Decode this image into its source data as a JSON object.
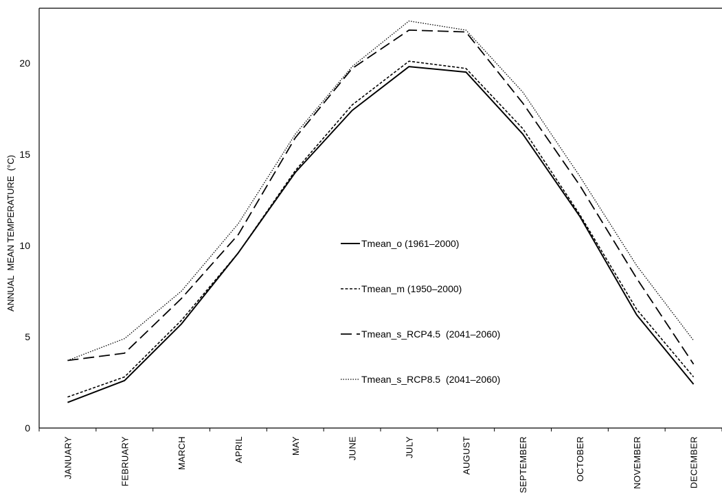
{
  "chart_data": {
    "type": "line",
    "title": "",
    "xlabel": "",
    "ylabel": "ANNUAL  MEAN TEMPERATURE  (°C)",
    "ylim": [
      0,
      23
    ],
    "yticks": [
      0,
      5,
      10,
      15,
      20
    ],
    "grid": false,
    "legend_position": "center",
    "categories": [
      "JANUARY",
      "FEBRUARY",
      "MARCH",
      "APRIL",
      "MAY",
      "JUNE",
      "JULY",
      "AUGUST",
      "SEPTEMBER",
      "OCTOBER",
      "NOVEMBER",
      "DECEMBER"
    ],
    "series": [
      {
        "name": "Tmean_o (1961–2000)",
        "style": "solid",
        "color": "#000000",
        "values": [
          1.4,
          2.6,
          5.7,
          9.6,
          14.0,
          17.4,
          19.8,
          19.5,
          16.1,
          11.6,
          6.2,
          2.4
        ]
      },
      {
        "name": "Tmean_m (1950–2000)",
        "style": "dashed-short",
        "color": "#000000",
        "values": [
          1.7,
          2.8,
          5.9,
          9.6,
          14.1,
          17.7,
          20.1,
          19.7,
          16.4,
          11.7,
          6.5,
          2.8
        ]
      },
      {
        "name": "Tmean_s_RCP4.5  (2041–2060)",
        "style": "dashed-long",
        "color": "#000000",
        "values": [
          3.7,
          4.1,
          7.1,
          10.6,
          15.9,
          19.7,
          21.8,
          21.7,
          17.8,
          13.3,
          8.2,
          3.5
        ]
      },
      {
        "name": "Tmean_s_RCP8.5  (2041–2060)",
        "style": "dotted",
        "color": "#000000",
        "values": [
          3.7,
          4.9,
          7.5,
          11.2,
          16.1,
          19.8,
          22.3,
          21.8,
          18.4,
          13.8,
          8.9,
          4.8
        ]
      }
    ]
  }
}
